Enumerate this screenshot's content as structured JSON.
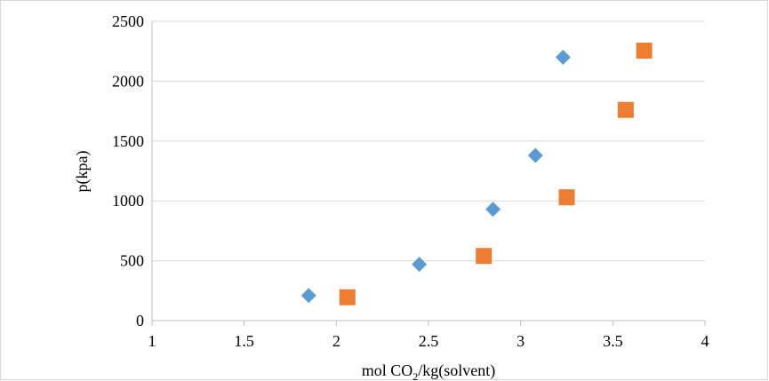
{
  "chart_data": {
    "type": "scatter",
    "title": "",
    "xlabel": {
      "prefix": "mol CO",
      "subscript": "2",
      "suffix": "/kg(solvent)"
    },
    "ylabel": "p(kpa)",
    "xlim": [
      1,
      4
    ],
    "ylim": [
      0,
      2500
    ],
    "x_ticks": [
      "1",
      "1.5",
      "2",
      "2.5",
      "3",
      "3.5",
      "4"
    ],
    "y_ticks": [
      "0",
      "500",
      "1000",
      "1500",
      "2000",
      "2500"
    ],
    "grid": "horizontal",
    "legend": "none",
    "series": [
      {
        "marker": "diamond",
        "color": "#5b9bd5",
        "points": [
          {
            "x": 1.85,
            "y": 210
          },
          {
            "x": 2.45,
            "y": 470
          },
          {
            "x": 2.85,
            "y": 930
          },
          {
            "x": 3.08,
            "y": 1380
          },
          {
            "x": 3.23,
            "y": 2200
          }
        ]
      },
      {
        "marker": "square",
        "color": "#ed7d31",
        "points": [
          {
            "x": 2.06,
            "y": 195
          },
          {
            "x": 2.8,
            "y": 540
          },
          {
            "x": 3.25,
            "y": 1030
          },
          {
            "x": 3.57,
            "y": 1760
          },
          {
            "x": 3.67,
            "y": 2255
          }
        ]
      }
    ]
  }
}
